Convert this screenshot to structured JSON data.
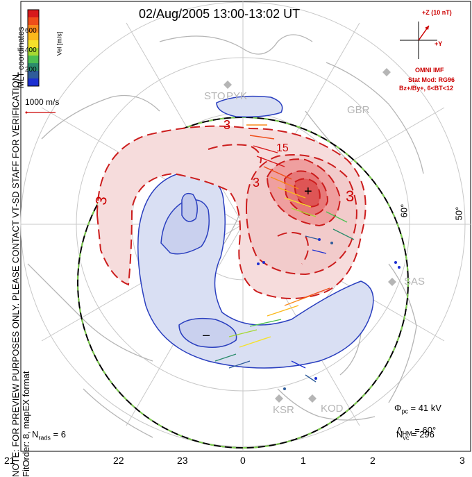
{
  "title": "02/Aug/2005 13:00-13:02 UT",
  "note_line1": "NOTE: FOR PREVIEW PURPOSES ONLY. PLEASE CONTACT VT-SD STAFF FOR VERIFICATION.",
  "note_line2": "FitOrder: 8, mapEX format",
  "coords": "MLT coordinates",
  "colorbar": {
    "label": "Vel [m/s]",
    "ticks": [
      "600",
      "400",
      "200"
    ],
    "colors": [
      "#d7191c",
      "#ef4e1a",
      "#f98a1c",
      "#fbb81b",
      "#f5e12a",
      "#a6d832",
      "#4cbf52",
      "#2b8c6c",
      "#2f5c9a",
      "#1c2fd1"
    ]
  },
  "scale_label": "1000 m/s",
  "imf": {
    "z_label": "+Z (10 nT)",
    "y_label": "+Y",
    "line1": "OMNI IMF",
    "line2": "Stat Mod: RG96",
    "line3": "Bz+/By+, 6<BT<12"
  },
  "stations": [
    "STO",
    "PYK",
    "GBR",
    "SAS",
    "KSR",
    "KOD"
  ],
  "latitudes": [
    "60°",
    "50°"
  ],
  "contour_labels": [
    "3",
    "3",
    "3",
    "15",
    "3"
  ],
  "markers": {
    "max": "+",
    "min": "–"
  },
  "stats": {
    "phi_pc_sym": "Φ",
    "phi_pc_sub": "pc",
    "phi_pc_val": " = 41 kV",
    "lambda_sym": "Λ",
    "lambda_sub": "HM",
    "lambda_val": " = 60°",
    "nvc_sym": "N",
    "nvc_sub": "vc",
    "nvc_val": " = 296",
    "nrads_sym": "N",
    "nrads_sub": "rads",
    "nrads_val": " = 6"
  },
  "mlt_labels": [
    "21",
    "22",
    "23",
    "0",
    "1",
    "2",
    "3"
  ]
}
